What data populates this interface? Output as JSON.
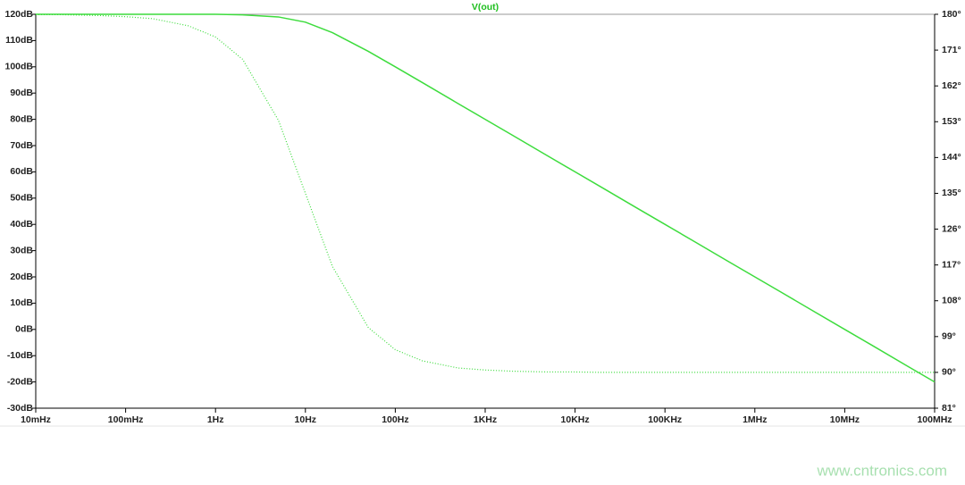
{
  "chart_data": {
    "type": "line",
    "title": "V(out)",
    "title_color": "#1fbf1f",
    "watermark": "www.cntronics.com",
    "x": [
      0.01,
      0.02,
      0.05,
      0.1,
      0.2,
      0.5,
      1,
      2,
      5,
      10,
      20,
      50,
      100,
      200,
      500,
      1000,
      2000,
      5000,
      10000,
      20000,
      50000,
      100000,
      200000,
      500000,
      1000000,
      2000000,
      5000000,
      10000000,
      20000000,
      50000000,
      100000000
    ],
    "xscale": "log",
    "xlim": [
      0.01,
      100000000
    ],
    "xticks": [
      {
        "value": 0.01,
        "label": "10mHz"
      },
      {
        "value": 0.1,
        "label": "100mHz"
      },
      {
        "value": 1,
        "label": "1Hz"
      },
      {
        "value": 10,
        "label": "10Hz"
      },
      {
        "value": 100,
        "label": "100Hz"
      },
      {
        "value": 1000,
        "label": "1KHz"
      },
      {
        "value": 10000,
        "label": "10KHz"
      },
      {
        "value": 100000,
        "label": "100KHz"
      },
      {
        "value": 1000000,
        "label": "1MHz"
      },
      {
        "value": 10000000,
        "label": "10MHz"
      },
      {
        "value": 100000000,
        "label": "100MHz"
      }
    ],
    "ylim": [
      -30,
      120
    ],
    "yticks": [
      {
        "value": 120,
        "label": "120dB"
      },
      {
        "value": 110,
        "label": "110dB"
      },
      {
        "value": 100,
        "label": "100dB"
      },
      {
        "value": 90,
        "label": "90dB"
      },
      {
        "value": 80,
        "label": "80dB"
      },
      {
        "value": 70,
        "label": "70dB"
      },
      {
        "value": 60,
        "label": "60dB"
      },
      {
        "value": 50,
        "label": "50dB"
      },
      {
        "value": 40,
        "label": "40dB"
      },
      {
        "value": 30,
        "label": "30dB"
      },
      {
        "value": 20,
        "label": "20dB"
      },
      {
        "value": 10,
        "label": "10dB"
      },
      {
        "value": 0,
        "label": "0dB"
      },
      {
        "value": -10,
        "label": "-10dB"
      },
      {
        "value": -20,
        "label": "-20dB"
      },
      {
        "value": -30,
        "label": "-30dB"
      }
    ],
    "y2lim": [
      81,
      180
    ],
    "y2ticks": [
      {
        "value": 180,
        "label": "180°"
      },
      {
        "value": 171,
        "label": "171°"
      },
      {
        "value": 162,
        "label": "162°"
      },
      {
        "value": 153,
        "label": "153°"
      },
      {
        "value": 144,
        "label": "144°"
      },
      {
        "value": 135,
        "label": "135°"
      },
      {
        "value": 126,
        "label": "126°"
      },
      {
        "value": 117,
        "label": "117°"
      },
      {
        "value": 108,
        "label": "108°"
      },
      {
        "value": 99,
        "label": "99°"
      },
      {
        "value": 90,
        "label": "90°"
      },
      {
        "value": 81,
        "label": "81°"
      }
    ],
    "series": [
      {
        "color": "#3ddc3d",
        "style": "solid",
        "axis": "y",
        "values": [
          120,
          120,
          120,
          120,
          120,
          120,
          120,
          119.8,
          119,
          117,
          113,
          105.9,
          100,
          94,
          86,
          80,
          74,
          66,
          60,
          54,
          46,
          40,
          34,
          26,
          20,
          14,
          6,
          0,
          -6,
          -14,
          -20
        ]
      },
      {
        "color": "#3ddc3d",
        "style": "dotted",
        "axis": "y2",
        "values": [
          179.9,
          179.9,
          179.7,
          179.4,
          178.9,
          177.1,
          174.3,
          168.7,
          153.4,
          135,
          116.6,
          101.3,
          95.7,
          92.9,
          91.1,
          90.6,
          90.3,
          90.1,
          90.1,
          90,
          90,
          90,
          90,
          90,
          90,
          90,
          90,
          90,
          90,
          90,
          90
        ]
      }
    ]
  }
}
